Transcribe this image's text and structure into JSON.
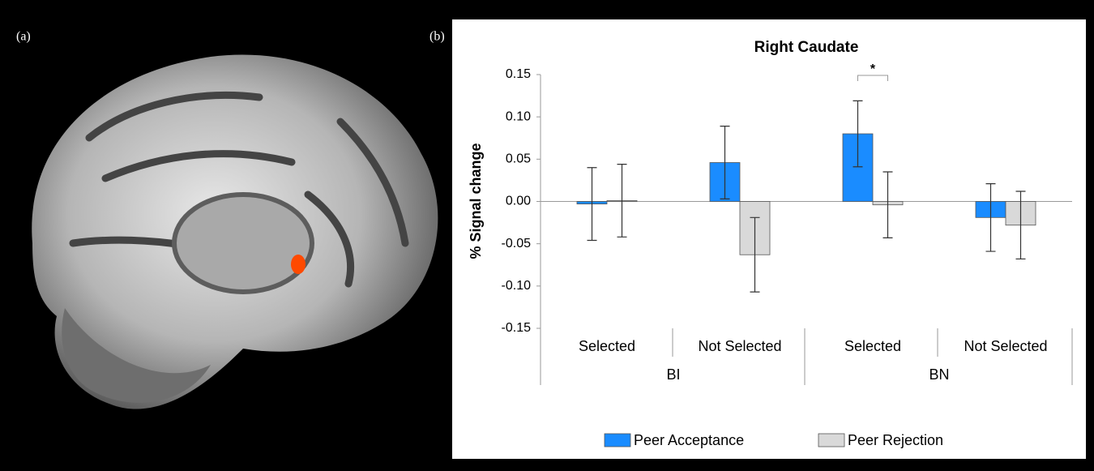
{
  "panel_labels": [
    "(a)",
    "(b)"
  ],
  "chart_data": {
    "type": "bar",
    "title": "Right Caudate",
    "y_label": "% Signal change",
    "categories": [
      "Selected",
      "Not Selected",
      "Selected",
      "Not Selected"
    ],
    "groups": [
      "BI",
      "BN"
    ],
    "series": [
      {
        "name": "Peer Acceptance",
        "color": "#1a8cff",
        "values": [
          -0.003,
          0.046,
          0.08,
          -0.019
        ],
        "errors": [
          0.043,
          0.043,
          0.039,
          0.04
        ]
      },
      {
        "name": "Peer Rejection",
        "color": "#d9d9d9",
        "values": [
          0.001,
          -0.063,
          -0.004,
          -0.028
        ],
        "errors": [
          0.043,
          0.044,
          0.039,
          0.04
        ]
      }
    ],
    "ylim": [
      -0.15,
      0.15
    ],
    "yticks": [
      0.15,
      {
        "value": 0.1,
        "label": "0.10"
      },
      0.05,
      {
        "value": 0,
        "label": "0.00"
      },
      -0.05,
      {
        "value": -0.1,
        "label": "-0.10"
      },
      -0.15
    ],
    "annotations": [
      {
        "text": "*"
      }
    ],
    "legend": "bottom"
  }
}
